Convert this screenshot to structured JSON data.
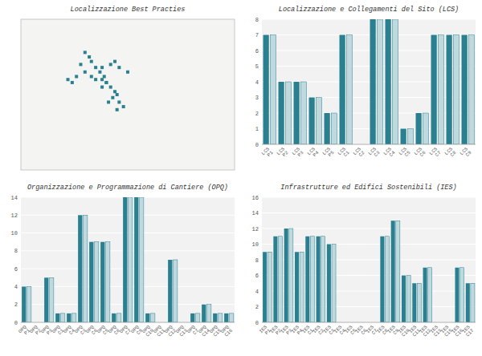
{
  "chart_data": [
    {
      "type": "scatter",
      "title": "Localizzazione Best Practies",
      "x": [
        0.3,
        0.32,
        0.33,
        0.28,
        0.3,
        0.35,
        0.37,
        0.39,
        0.38,
        0.4,
        0.42,
        0.44,
        0.45,
        0.43,
        0.41,
        0.46,
        0.48,
        0.45,
        0.38,
        0.4,
        0.35,
        0.33,
        0.38,
        0.42,
        0.44,
        0.46,
        0.5,
        0.22,
        0.24,
        0.26
      ],
      "values": [
        0.78,
        0.75,
        0.72,
        0.7,
        0.65,
        0.68,
        0.65,
        0.62,
        0.6,
        0.58,
        0.55,
        0.52,
        0.5,
        0.48,
        0.45,
        0.45,
        0.42,
        0.4,
        0.55,
        0.58,
        0.6,
        0.62,
        0.68,
        0.7,
        0.72,
        0.68,
        0.65,
        0.6,
        0.58,
        0.62
      ],
      "xlim": [
        0,
        1
      ],
      "ylim": [
        0,
        1
      ],
      "tick_labels": false,
      "color": "#2a8090",
      "marker": "square"
    },
    {
      "type": "bar",
      "title": "Localizzazione e Collegamenti del Sito (LCS)",
      "categories": [
        "LCS\nP1",
        "LCS\nP2",
        "LCS\nP3",
        "LCS\nP4",
        "LCS\nP5",
        "LCS\nC1",
        "LCS\nC2",
        "LCS\nC3",
        "LCS\nC4",
        "LCS\nC5",
        "LCS\nC6",
        "LCS\nC7",
        "LCS\nC8",
        "LCS\nC9"
      ],
      "values": [
        7,
        4,
        4,
        3,
        2,
        7,
        0,
        8,
        8,
        1,
        2,
        7,
        7,
        7
      ],
      "ylim": [
        0,
        8
      ],
      "yticks": [
        0,
        1,
        2,
        3,
        4,
        5,
        6,
        7,
        8
      ],
      "grid": true,
      "color": "#2a8090"
    },
    {
      "type": "bar",
      "title": "Organizzazione e Programmazione di Cantiere (OPQ)",
      "categories": [
        "OPQ\nP1",
        "OPQ\nP2",
        "OPQ\nP3",
        "OPQ\nC1",
        "OPQ\nC4",
        "OPQ\nC3",
        "OPQ\nC6",
        "OPQ\nC5",
        "OPQ\nC8",
        "OPQ\nC7",
        "OPQ\nC9",
        "OPQ\nC10",
        "OPQ\nC11",
        "OPQ\nC12",
        "OPQ\nC13",
        "OPQ\nC7",
        "OPQ\nC14",
        "OPQ\nC15",
        "OPQ\nC16"
      ],
      "values": [
        4,
        0,
        5,
        1,
        1,
        12,
        9,
        9,
        1,
        14,
        14,
        1,
        0,
        7,
        0,
        1,
        2,
        1,
        1
      ],
      "ylim": [
        0,
        14
      ],
      "yticks": [
        0,
        2,
        4,
        6,
        8,
        10,
        12,
        14
      ],
      "grid": true,
      "color": "#2a8090"
    },
    {
      "type": "bar",
      "title": "Infrastrutture ed Edifici Sostenibili (IES)",
      "categories": [
        "IES\nP1",
        "IES\nP2",
        "IES\nP3",
        "IES\nP4",
        "IES\nC1",
        "IES\nC2",
        "IES\nC3",
        "IES\nC4",
        "IES\nC5",
        "IES\nC6",
        "IES\nC7",
        "IES\nC8",
        "IES\nC9",
        "IES\nC10",
        "IES\nC11",
        "IES\nC12",
        "IES\nC13",
        "IES\nC15",
        "IES\nC16",
        "IES\nC17"
      ],
      "values": [
        9,
        11,
        12,
        9,
        11,
        11,
        10,
        0,
        0,
        0,
        0,
        11,
        13,
        6,
        5,
        7,
        0,
        0,
        7,
        5
      ],
      "ylim": [
        0,
        16
      ],
      "yticks": [
        0,
        2,
        4,
        6,
        8,
        10,
        12,
        14,
        16
      ],
      "grid": true,
      "color": "#2a8090"
    }
  ]
}
